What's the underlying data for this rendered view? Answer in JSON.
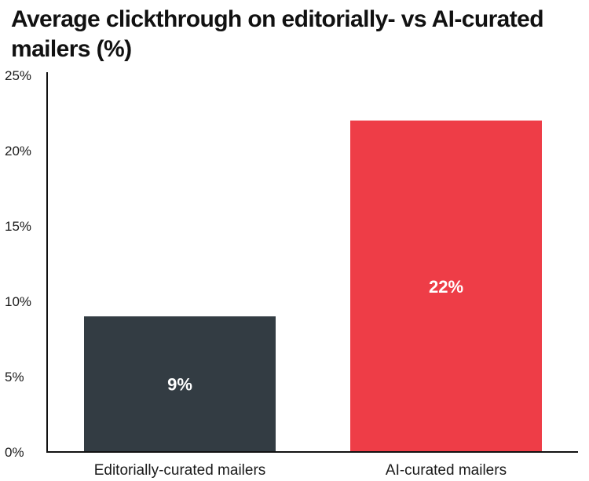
{
  "chart_data": {
    "type": "bar",
    "title": "Average clickthrough on editorially- vs AI-curated mailers (%)",
    "categories": [
      "Editorially-curated mailers",
      "AI-curated mailers"
    ],
    "values": [
      9,
      22
    ],
    "data_labels": [
      "9%",
      "22%"
    ],
    "colors": [
      "#333c43",
      "#ee3d47"
    ],
    "ylim": [
      0,
      25
    ],
    "yticks": [
      0,
      5,
      10,
      15,
      20,
      25
    ],
    "ytick_labels": [
      "0%",
      "5%",
      "10%",
      "15%",
      "20%",
      "25%"
    ],
    "xlabel": "",
    "ylabel": "",
    "grid": false,
    "legend": "none"
  }
}
